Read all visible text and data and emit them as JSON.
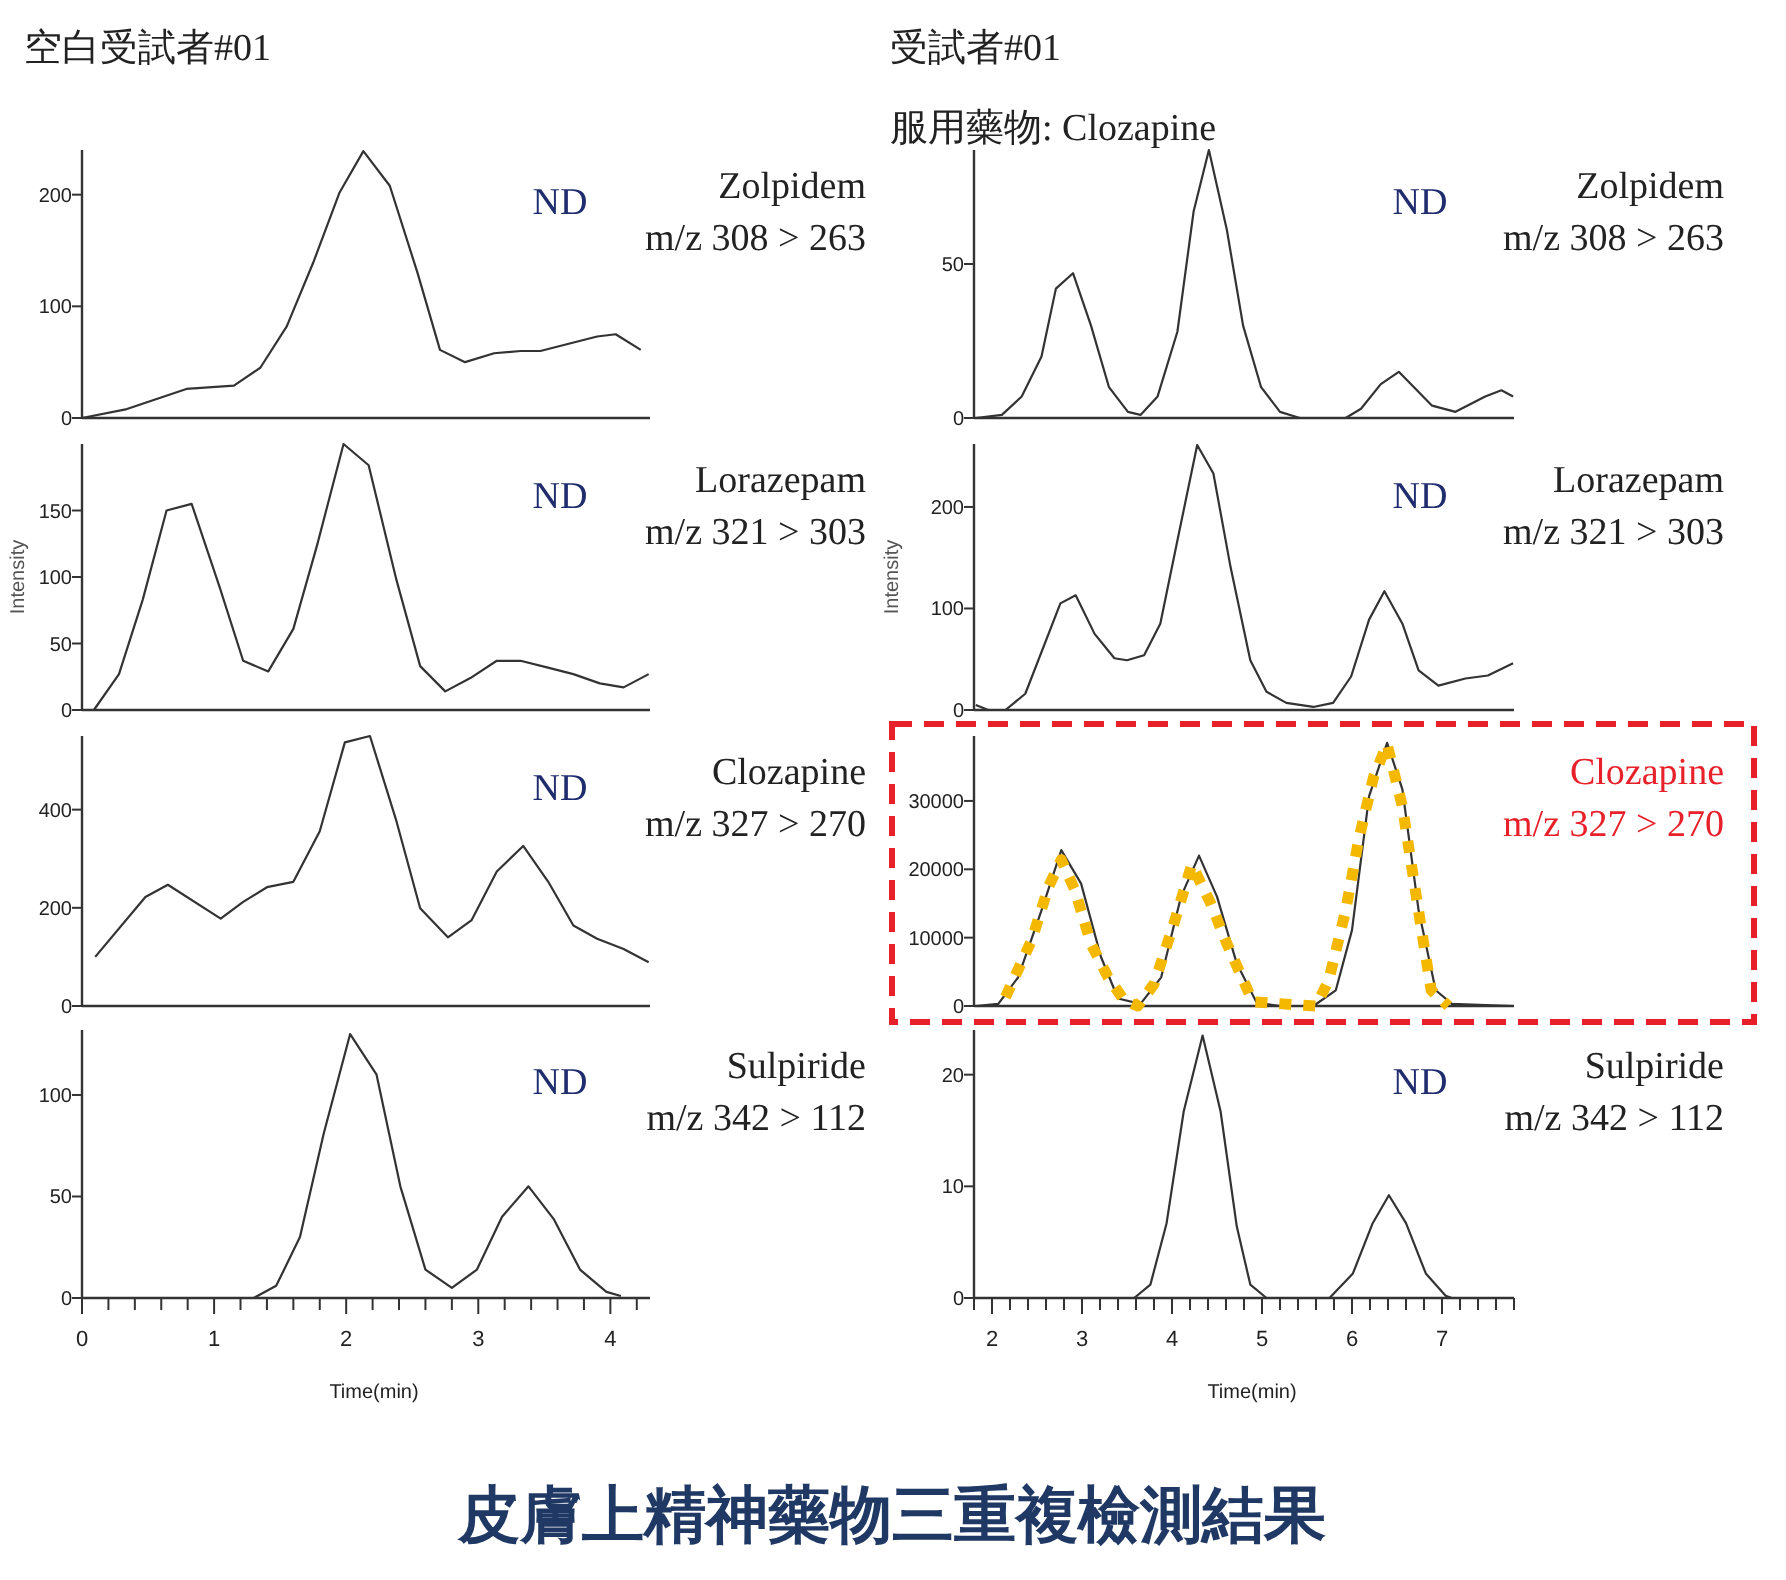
{
  "chart_data": [
    {
      "type": "line",
      "title": "空白受試者#01",
      "xlim": [
        0,
        4.3
      ],
      "ylim": [
        0,
        240
      ],
      "yticks": [
        0,
        100,
        200
      ],
      "tick_labels": "y",
      "annotations": [
        "ND",
        "Zolpidem",
        "m/z 308 > 263"
      ],
      "series": [
        {
          "color": "#333333",
          "x": [
            0,
            0.34,
            0.79,
            1.15,
            1.35,
            1.55,
            1.75,
            1.95,
            2.13,
            2.33,
            2.54,
            2.71,
            2.9,
            3.12,
            3.32,
            3.47,
            3.67,
            3.9,
            4.04,
            4.23
          ],
          "values": [
            0,
            8,
            26,
            29,
            45,
            82,
            139,
            202,
            239,
            208,
            130,
            61,
            50,
            58,
            60,
            60,
            66,
            73,
            75,
            61
          ]
        }
      ]
    },
    {
      "type": "line",
      "xlim": [
        0,
        4.3
      ],
      "ylim": [
        0,
        200
      ],
      "yticks": [
        0,
        50,
        100,
        150
      ],
      "ylabel": "Intensity",
      "tick_labels": "y",
      "annotations": [
        "ND",
        "Lorazepam",
        "m/z 321 > 303"
      ],
      "series": [
        {
          "color": "#333333",
          "x": [
            0.09,
            0.28,
            0.46,
            0.64,
            0.83,
            1.04,
            1.22,
            1.41,
            1.6,
            1.78,
            1.98,
            2.17,
            2.38,
            2.56,
            2.75,
            2.94,
            3.14,
            3.32,
            3.52,
            3.72,
            3.92,
            4.1,
            4.29
          ],
          "values": [
            0,
            27,
            83,
            150,
            155,
            93,
            37,
            29,
            61,
            124,
            200,
            184,
            98,
            33,
            14,
            24,
            37,
            37,
            32,
            27,
            20,
            17,
            27
          ]
        }
      ]
    },
    {
      "type": "line",
      "xlim": [
        0,
        4.3
      ],
      "ylim": [
        0,
        550
      ],
      "yticks": [
        0,
        200,
        400
      ],
      "tick_labels": "y",
      "annotations": [
        "ND",
        "Clozapine",
        "m/z 327 > 270"
      ],
      "series": [
        {
          "color": "#333333",
          "x": [
            0.1,
            0.48,
            0.65,
            1.05,
            1.22,
            1.4,
            1.6,
            1.8,
            1.99,
            2.18,
            2.38,
            2.56,
            2.77,
            2.95,
            3.14,
            3.34,
            3.53,
            3.72,
            3.9,
            4.1,
            4.29
          ],
          "values": [
            100,
            222,
            247,
            178,
            212,
            242,
            253,
            356,
            537,
            550,
            377,
            199,
            140,
            175,
            274,
            326,
            253,
            164,
            137,
            116,
            89
          ]
        }
      ]
    },
    {
      "type": "line",
      "xlim": [
        0,
        4.3
      ],
      "ylim": [
        0,
        132
      ],
      "yticks": [
        0,
        50,
        100
      ],
      "xlabel": "Time(min)",
      "annotations": [
        "ND",
        "Sulpiride",
        "m/z 342 > 112"
      ],
      "xticks": [
        0,
        {
          "value": 0.2,
          "label": null
        },
        {
          "value": 0.4,
          "label": null
        },
        {
          "value": 0.6,
          "label": null
        },
        {
          "value": 0.8,
          "label": null
        },
        1,
        {
          "value": 1.2,
          "label": null
        },
        {
          "value": 1.4,
          "label": null
        },
        {
          "value": 1.6,
          "label": null
        },
        {
          "value": 1.8,
          "label": null
        },
        2,
        {
          "value": 2.2,
          "label": null
        },
        {
          "value": 2.4,
          "label": null
        },
        {
          "value": 2.6,
          "label": null
        },
        {
          "value": 2.8,
          "label": null
        },
        3,
        {
          "value": 3.2,
          "label": null
        },
        {
          "value": 3.4,
          "label": null
        },
        {
          "value": 3.6,
          "label": null
        },
        {
          "value": 3.8,
          "label": null
        },
        4,
        {
          "value": 4.2,
          "label": null
        }
      ],
      "series": [
        {
          "color": "#333333",
          "x": [
            0,
            1.3,
            1.47,
            1.65,
            1.83,
            2.03,
            2.23,
            2.41,
            2.6,
            2.8,
            2.99,
            3.18,
            3.38,
            3.57,
            3.77,
            3.97,
            4.08
          ],
          "values": [
            0,
            0,
            6,
            30,
            81,
            130,
            110,
            55,
            14,
            5,
            14,
            40,
            55,
            39,
            14,
            3,
            1
          ]
        }
      ]
    },
    {
      "type": "line",
      "title": "受試者#01",
      "subtitle": "服用藥物: Clozapine",
      "xlim": [
        1.8,
        7.8
      ],
      "ylim": [
        0,
        87
      ],
      "yticks": [
        0,
        50
      ],
      "tick_labels": "y",
      "annotations": [
        "ND",
        "Zolpidem",
        "m/z 308 > 263"
      ],
      "series": [
        {
          "color": "#333333",
          "x": [
            1.82,
            2.11,
            2.33,
            2.55,
            2.71,
            2.9,
            3.1,
            3.3,
            3.51,
            3.65,
            3.84,
            4.06,
            4.24,
            4.41,
            4.61,
            4.79,
            4.99,
            5.2,
            5.42,
            5.93,
            6.1,
            6.32,
            6.52,
            6.89,
            7.15,
            7.48,
            7.66,
            7.79
          ],
          "values": [
            0,
            1,
            7,
            20,
            42,
            47,
            30,
            10,
            2,
            1,
            7,
            28,
            67,
            87,
            61,
            30,
            10,
            2,
            0,
            0,
            3,
            11,
            15,
            4,
            2,
            7,
            9,
            7
          ]
        }
      ]
    },
    {
      "type": "line",
      "xlim": [
        1.8,
        7.8
      ],
      "ylim": [
        0,
        262
      ],
      "yticks": [
        0,
        100,
        200
      ],
      "ylabel": "Intensity",
      "tick_labels": "y",
      "annotations": [
        "ND",
        "Lorazepam",
        "m/z 321 > 303"
      ],
      "series": [
        {
          "color": "#333333",
          "x": [
            1.82,
            1.96,
            2.15,
            2.37,
            2.76,
            2.93,
            3.14,
            3.36,
            3.5,
            3.69,
            3.87,
            4.06,
            4.28,
            4.46,
            4.65,
            4.87,
            5.05,
            5.27,
            5.57,
            5.79,
            5.99,
            6.19,
            6.36,
            6.56,
            6.74,
            6.96,
            7.26,
            7.51,
            7.79
          ],
          "values": [
            5,
            0,
            0,
            16,
            105,
            113,
            75,
            51,
            49,
            54,
            85,
            167,
            261,
            233,
            141,
            49,
            18,
            7,
            3,
            7,
            33,
            89,
            117,
            85,
            39,
            24,
            31,
            34,
            46
          ]
        }
      ]
    },
    {
      "type": "line",
      "xlim": [
        1.8,
        7.8
      ],
      "ylim": [
        0,
        39500
      ],
      "yticks": [
        0,
        10000,
        20000,
        30000
      ],
      "tick_labels": "y",
      "annotations": [
        "Clozapine",
        "m/z 327 > 270"
      ],
      "series": [
        {
          "color": "#333333",
          "x": [
            1.82,
            2.07,
            2.29,
            2.55,
            2.77,
            2.99,
            3.21,
            3.4,
            3.65,
            3.88,
            4.1,
            4.3,
            4.5,
            4.72,
            4.94,
            5.2,
            5.57,
            5.82,
            6.0,
            6.19,
            6.39,
            6.56,
            6.74,
            6.93,
            7.11,
            7.79
          ],
          "values": [
            0,
            300,
            4200,
            14000,
            22800,
            17900,
            7200,
            1100,
            300,
            4200,
            16000,
            22000,
            16000,
            6200,
            500,
            0,
            0,
            2300,
            11100,
            30700,
            38500,
            31700,
            14000,
            2300,
            300,
            0
          ]
        },
        {
          "color": "#f5b800",
          "line_style": "dotted",
          "x": [
            2.15,
            2.44,
            2.63,
            2.77,
            2.92,
            3.1,
            3.29,
            3.47,
            3.62,
            3.8,
            4.02,
            4.22,
            4.43,
            4.61,
            4.9,
            5.6,
            5.74,
            5.93,
            6.08,
            6.24,
            6.39,
            6.56,
            6.67,
            6.78,
            6.88,
            7.07
          ],
          "values": [
            1300,
            9600,
            17500,
            21400,
            17000,
            9100,
            4200,
            800,
            0,
            3200,
            12000,
            20700,
            15000,
            9100,
            600,
            0,
            3700,
            14000,
            24700,
            33500,
            38300,
            29200,
            19800,
            10500,
            2300,
            0
          ]
        }
      ]
    },
    {
      "type": "line",
      "xlim": [
        1.8,
        7.8
      ],
      "ylim": [
        0,
        24
      ],
      "yticks": [
        0,
        10,
        20
      ],
      "xlabel": "Time(min)",
      "annotations": [
        "ND",
        "Sulpiride",
        "m/z 342 > 112"
      ],
      "xticks": [
        {
          "value": 1.8,
          "label": null
        },
        2,
        {
          "value": 2.2,
          "label": null
        },
        {
          "value": 2.4,
          "label": null
        },
        {
          "value": 2.6,
          "label": null
        },
        {
          "value": 2.8,
          "label": null
        },
        3,
        {
          "value": 3.2,
          "label": null
        },
        {
          "value": 3.4,
          "label": null
        },
        {
          "value": 3.6,
          "label": null
        },
        {
          "value": 3.8,
          "label": null
        },
        4,
        {
          "value": 4.2,
          "label": null
        },
        {
          "value": 4.4,
          "label": null
        },
        {
          "value": 4.6,
          "label": null
        },
        {
          "value": 4.8,
          "label": null
        },
        5,
        {
          "value": 5.2,
          "label": null
        },
        {
          "value": 5.4,
          "label": null
        },
        {
          "value": 5.6,
          "label": null
        },
        {
          "value": 5.8,
          "label": null
        },
        6,
        {
          "value": 6.2,
          "label": null
        },
        {
          "value": 6.4,
          "label": null
        },
        {
          "value": 6.6,
          "label": null
        },
        {
          "value": 6.8,
          "label": null
        },
        7,
        {
          "value": 7.2,
          "label": null
        },
        {
          "value": 7.4,
          "label": null
        },
        {
          "value": 7.6,
          "label": null
        },
        {
          "value": 7.8,
          "label": null
        }
      ],
      "series": [
        {
          "color": "#333333",
          "x": [
            1.82,
            3.58,
            3.76,
            3.94,
            4.13,
            4.34,
            4.54,
            4.72,
            4.87,
            5.05,
            5.75,
            6.01,
            6.23,
            6.41,
            6.6,
            6.82,
            7.04,
            7.11
          ],
          "values": [
            0,
            0,
            1.2,
            6.7,
            16.7,
            23.5,
            16.7,
            6.4,
            1.2,
            0,
            0,
            2.2,
            6.7,
            9.2,
            6.7,
            2.2,
            0.2,
            0
          ]
        }
      ]
    },
    {
      "type": "other",
      "title": "皮膚上精神藥物三重複檢測結果"
    }
  ]
}
